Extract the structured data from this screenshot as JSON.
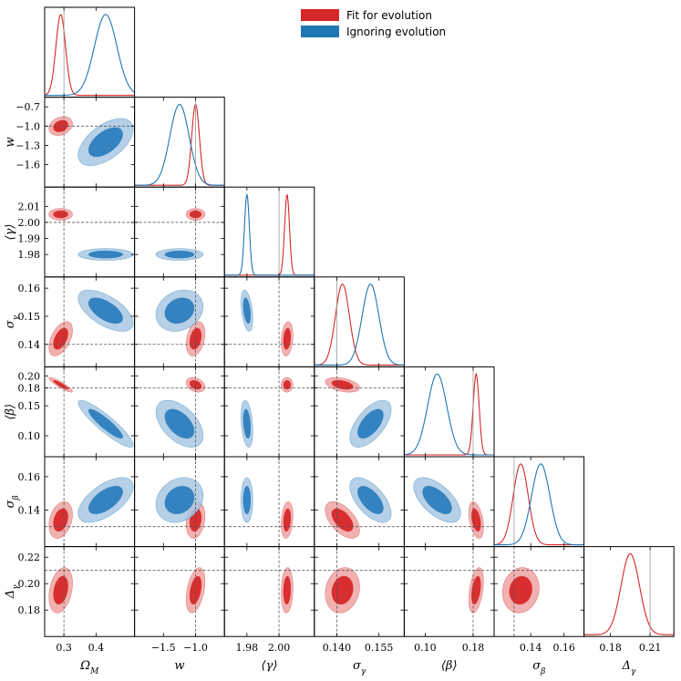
{
  "chart_data": {
    "type": "corner",
    "parameters": [
      {
        "key": "omega_m",
        "symbol": "Ω",
        "sub": "M",
        "truth": 0.3,
        "range": [
          0.24,
          0.52
        ],
        "ticks": [
          0.3,
          0.4
        ],
        "tick_labels": [
          "0.3",
          "0.4"
        ]
      },
      {
        "key": "w",
        "symbol": "w",
        "sub": "",
        "truth": -1.0,
        "range": [
          -1.95,
          -0.55
        ],
        "ticks": [
          -1.5,
          -1.0
        ],
        "tick_labels": [
          "−1.5",
          "−1.0"
        ],
        "row_ticks": [
          -0.7,
          -1.0,
          -1.3,
          -1.6
        ],
        "row_tick_labels": [
          "−0.7",
          "−1.0",
          "−1.3",
          "−1.6"
        ]
      },
      {
        "key": "mean_gamma",
        "symbol": "⟨γ⟩",
        "sub": "",
        "truth": 2.0,
        "range": [
          1.966,
          2.022
        ],
        "ticks": [
          1.98,
          2.0
        ],
        "tick_labels": [
          "1.98",
          "2.00"
        ],
        "row_ticks": [
          2.01,
          2.0,
          1.99,
          1.98
        ],
        "row_tick_labels": [
          "2.01",
          "2.00",
          "1.99",
          "1.98"
        ]
      },
      {
        "key": "sigma_gamma",
        "symbol": "σ",
        "sub": "γ",
        "truth": 0.14,
        "range": [
          0.132,
          0.164
        ],
        "ticks": [
          0.14,
          0.155
        ],
        "tick_labels": [
          "0.140",
          "0.155"
        ],
        "row_ticks": [
          0.16,
          0.15,
          0.14
        ],
        "row_tick_labels": [
          "0.16",
          "0.15",
          "0.14"
        ]
      },
      {
        "key": "mean_beta",
        "symbol": "⟨β⟩",
        "sub": "",
        "truth": 0.18,
        "range": [
          0.065,
          0.215
        ],
        "ticks": [
          0.1,
          0.18
        ],
        "tick_labels": [
          "0.10",
          "0.18"
        ],
        "row_ticks": [
          0.2,
          0.18,
          0.15,
          0.1
        ],
        "row_tick_labels": [
          "0.20",
          "0.18",
          "0.15",
          "0.10"
        ]
      },
      {
        "key": "sigma_beta",
        "symbol": "σ",
        "sub": "β",
        "truth": 0.13,
        "range": [
          0.118,
          0.172
        ],
        "ticks": [
          0.14,
          0.16
        ],
        "tick_labels": [
          "0.14",
          "0.16"
        ],
        "row_ticks": [
          0.16,
          0.14
        ],
        "row_tick_labels": [
          "0.16",
          "0.14"
        ]
      },
      {
        "key": "delta_gamma",
        "symbol": "Δ",
        "sub": "γ",
        "truth": 0.21,
        "range": [
          0.16,
          0.228
        ],
        "ticks": [
          0.18,
          0.21
        ],
        "tick_labels": [
          "0.18",
          "0.21"
        ],
        "row_ticks": [
          0.22,
          0.2,
          0.18
        ],
        "row_tick_labels": [
          "0.22",
          "0.20",
          "0.18"
        ]
      }
    ],
    "series": [
      {
        "name": "Fit for evolution",
        "color": "#d62728",
        "fill_inner": "#d62728",
        "fill_outer": "#f0a3a3",
        "means": [
          0.29,
          -1.0,
          2.005,
          0.142,
          0.185,
          0.134,
          0.195
        ],
        "sigmas": [
          0.015,
          0.06,
          0.0015,
          0.0025,
          0.005,
          0.0045,
          0.007
        ],
        "pair_corr": {
          "omega_m|w": 0.25,
          "omega_m|mean_gamma": 0.0,
          "omega_m|sigma_gamma": 0.5,
          "omega_m|mean_beta": -0.9,
          "omega_m|sigma_beta": 0.3,
          "omega_m|delta_gamma": 0.3,
          "w|mean_gamma": 0.0,
          "w|sigma_gamma": 0.3,
          "w|mean_beta": -0.3,
          "w|sigma_beta": 0.2,
          "w|delta_gamma": 0.4,
          "mean_gamma|sigma_gamma": 0.2,
          "mean_gamma|mean_beta": 0.0,
          "mean_gamma|sigma_beta": 0.2,
          "mean_gamma|delta_gamma": 0.1,
          "sigma_gamma|mean_beta": -0.4,
          "sigma_gamma|sigma_beta": -0.55,
          "sigma_gamma|delta_gamma": 0.15,
          "mean_beta|sigma_beta": -0.4,
          "mean_beta|delta_gamma": 0.4,
          "sigma_beta|delta_gamma": 0.1
        }
      },
      {
        "name": "Ignoring evolution",
        "color": "#1f77b4",
        "fill_inner": "#2d7dbe",
        "fill_outer": "#a8c8e3",
        "means": [
          0.43,
          -1.25,
          1.98,
          0.152,
          0.12,
          0.146,
          null
        ],
        "sigmas": [
          0.035,
          0.15,
          0.0015,
          0.003,
          0.016,
          0.0055,
          null
        ],
        "pair_corr": {
          "omega_m|w": 0.55,
          "omega_m|mean_gamma": 0.0,
          "omega_m|sigma_gamma": -0.6,
          "omega_m|mean_beta": -0.9,
          "omega_m|sigma_beta": 0.6,
          "w|mean_gamma": 0.0,
          "w|sigma_gamma": 0.2,
          "w|mean_beta": -0.5,
          "w|sigma_beta": 0.2,
          "mean_gamma|sigma_gamma": -0.4,
          "mean_gamma|mean_beta": -0.3,
          "mean_gamma|sigma_beta": 0.0,
          "sigma_gamma|mean_beta": 0.6,
          "sigma_gamma|sigma_beta": -0.6,
          "mean_beta|sigma_beta": -0.6
        }
      }
    ],
    "legend": [
      "Fit for evolution",
      "Ignoring evolution"
    ],
    "legend_position": "top-center",
    "truth_line_color": "#555555"
  }
}
